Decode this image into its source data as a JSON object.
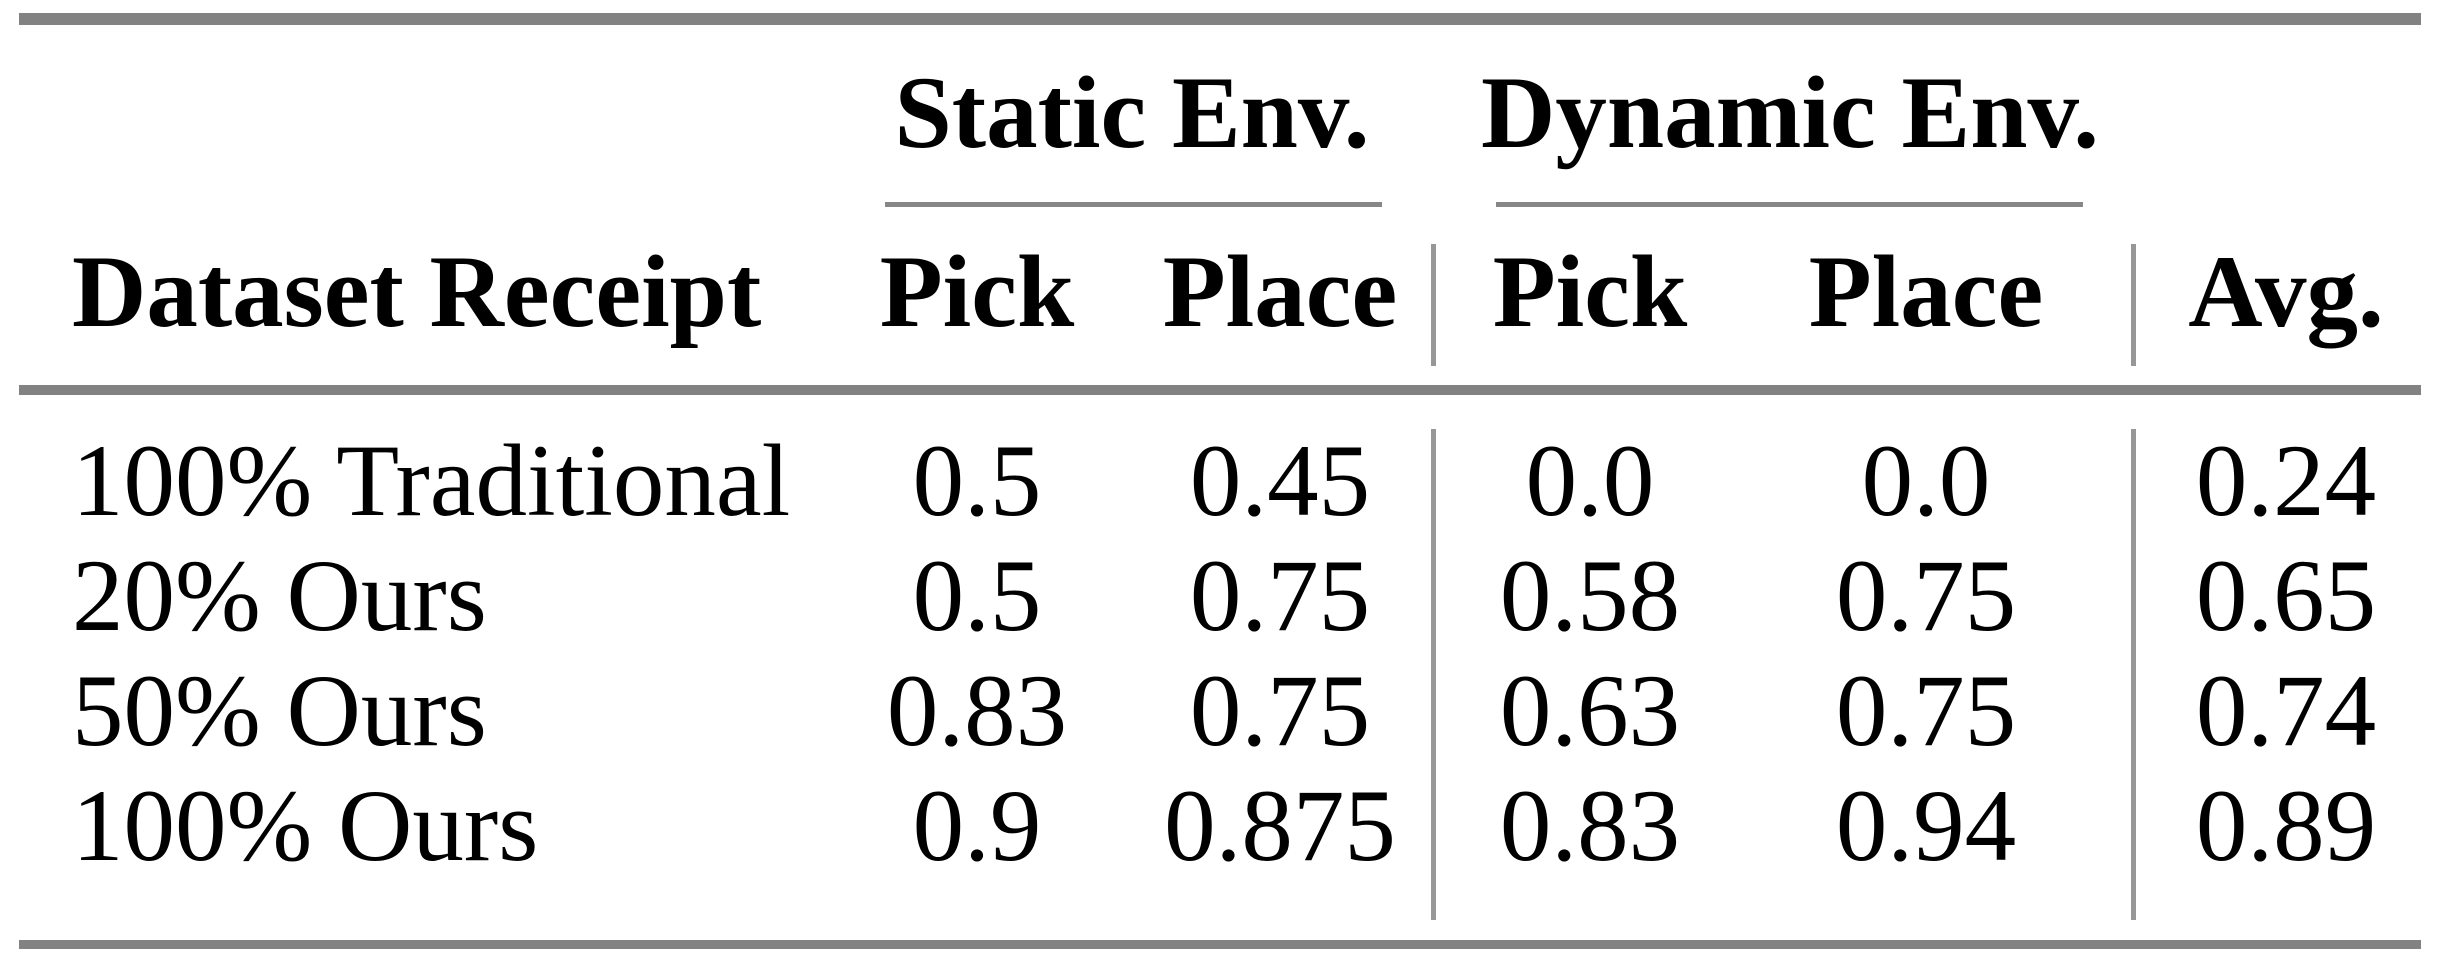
{
  "table": {
    "corner_header": "Dataset Receipt",
    "group_headers": {
      "static": "Static Env.",
      "dynamic": "Dynamic Env."
    },
    "column_headers": {
      "static_pick": "Pick",
      "static_place": "Place",
      "dynamic_pick": "Pick",
      "dynamic_place": "Place",
      "avg": "Avg."
    },
    "rows": [
      {
        "label": "100% Traditional",
        "values": [
          "0.5",
          "0.45",
          "0.0",
          "0.0",
          "0.24"
        ]
      },
      {
        "label": "20% Ours",
        "values": [
          "0.5",
          "0.75",
          "0.58",
          "0.75",
          "0.65"
        ]
      },
      {
        "label": "50% Ours",
        "values": [
          "0.83",
          "0.75",
          "0.63",
          "0.75",
          "0.74"
        ]
      },
      {
        "label": "100% Ours",
        "values": [
          "0.9",
          "0.875",
          "0.83",
          "0.94",
          "0.89"
        ]
      }
    ],
    "colors": {
      "rule": "#828282",
      "cmidrule": "#878787",
      "vline": "#979797",
      "text": "#000000",
      "background": "#ffffff"
    }
  }
}
